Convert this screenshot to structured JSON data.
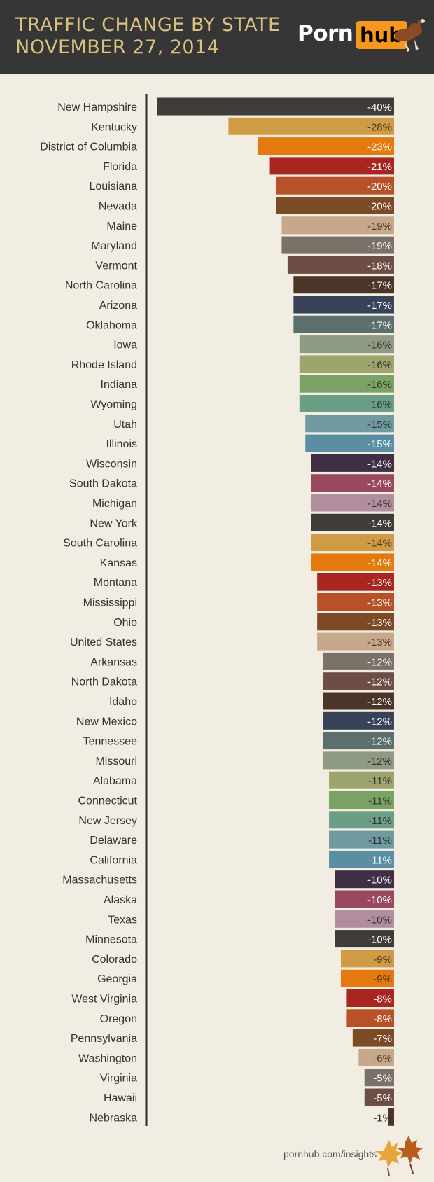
{
  "header": {
    "title_line1": "TRAFFIC CHANGE BY STATE",
    "title_line2": "NOVEMBER 27, 2014",
    "logo_left": "Porn",
    "logo_right": "hub"
  },
  "footer": {
    "source": "pornhub.com/insights"
  },
  "chart_data": {
    "type": "bar",
    "orientation": "horizontal",
    "title": "TRAFFIC CHANGE BY STATE NOVEMBER 27, 2014",
    "xlim": [
      -40,
      0
    ],
    "categories": [
      "New Hampshire",
      "Kentucky",
      "District of Columbia",
      "Florida",
      "Louisiana",
      "Nevada",
      "Maine",
      "Maryland",
      "Vermont",
      "North Carolina",
      "Arizona",
      "Oklahoma",
      "Iowa",
      "Rhode Island",
      "Indiana",
      "Wyoming",
      "Utah",
      "Illinois",
      "Wisconsin",
      "South Dakota",
      "Michigan",
      "New York",
      "South Carolina",
      "Kansas",
      "Montana",
      "Mississippi",
      "Ohio",
      "United States",
      "Arkansas",
      "North Dakota",
      "Idaho",
      "New Mexico",
      "Tennessee",
      "Missouri",
      "Alabama",
      "Connecticut",
      "New Jersey",
      "Delaware",
      "California",
      "Massachusetts",
      "Alaska",
      "Texas",
      "Minnesota",
      "Colorado",
      "Georgia",
      "West Virginia",
      "Oregon",
      "Pennsylvania",
      "Washington",
      "Virginia",
      "Hawaii",
      "Nebraska"
    ],
    "values": [
      -40,
      -28,
      -23,
      -21,
      -20,
      -20,
      -19,
      -19,
      -18,
      -17,
      -17,
      -17,
      -16,
      -16,
      -16,
      -16,
      -15,
      -15,
      -14,
      -14,
      -14,
      -14,
      -14,
      -14,
      -13,
      -13,
      -13,
      -13,
      -12,
      -12,
      -12,
      -12,
      -12,
      -12,
      -11,
      -11,
      -11,
      -11,
      -11,
      -10,
      -10,
      -10,
      -10,
      -9,
      -9,
      -8,
      -8,
      -7,
      -6,
      -5,
      -5,
      -1
    ],
    "labels": [
      "-40%",
      "-28%",
      "-23%",
      "-21%",
      "-20%",
      "-20%",
      "-19%",
      "-19%",
      "-18%",
      "-17%",
      "-17%",
      "-17%",
      "-16%",
      "-16%",
      "-16%",
      "-16%",
      "-15%",
      "-15%",
      "-14%",
      "-14%",
      "-14%",
      "-14%",
      "-14%",
      "-14%",
      "-13%",
      "-13%",
      "-13%",
      "-13%",
      "-12%",
      "-12%",
      "-12%",
      "-12%",
      "-12%",
      "-12%",
      "-11%",
      "-11%",
      "-11%",
      "-11%",
      "-11%",
      "-10%",
      "-10%",
      "-10%",
      "-10%",
      "-9%",
      "-9%",
      "-8%",
      "-8%",
      "-7%",
      "-6%",
      "-5%",
      "-5%",
      "-1%"
    ],
    "colors": [
      "#3f3b36",
      "#cf9b45",
      "#e47a0d",
      "#a8261f",
      "#b85127",
      "#7d4a26",
      "#c8a88a",
      "#7a7169",
      "#6c4e44",
      "#4a3527",
      "#384258",
      "#5b6f6c",
      "#8f9a82",
      "#9ea56c",
      "#7aa264",
      "#6a9f85",
      "#6f9aa0",
      "#5a8fa3",
      "#3e2f44",
      "#99485e",
      "#b18d9e",
      "#3f3b36",
      "#cf9b45",
      "#e47a0d",
      "#a8261f",
      "#b85127",
      "#7d4a26",
      "#c8a88a",
      "#7a7169",
      "#6c4e44",
      "#4a3527",
      "#384258",
      "#5b6f6c",
      "#8f9a82",
      "#9ea56c",
      "#7aa264",
      "#6a9f85",
      "#6f9aa0",
      "#5a8fa3",
      "#3e2f44",
      "#99485e",
      "#b18d9e",
      "#3f3b36",
      "#cf9b45",
      "#e47a0d",
      "#a8261f",
      "#b85127",
      "#7d4a26",
      "#c8a88a",
      "#7a7169",
      "#6c4e44",
      "#4a3527"
    ],
    "label_colors": [
      "#ffffff",
      "#4a3b1a",
      "#ffffff",
      "#ffffff",
      "#ffffff",
      "#ffffff",
      "#4a3b2a",
      "#ffffff",
      "#ffffff",
      "#ffffff",
      "#ffffff",
      "#ffffff",
      "#333333",
      "#333333",
      "#333333",
      "#333333",
      "#333333",
      "#ffffff",
      "#ffffff",
      "#ffffff",
      "#333333",
      "#ffffff",
      "#4a3b1a",
      "#ffffff",
      "#ffffff",
      "#ffffff",
      "#ffffff",
      "#4a3b2a",
      "#ffffff",
      "#ffffff",
      "#ffffff",
      "#ffffff",
      "#ffffff",
      "#333333",
      "#333333",
      "#333333",
      "#333333",
      "#333333",
      "#ffffff",
      "#ffffff",
      "#ffffff",
      "#333333",
      "#ffffff",
      "#4a3b1a",
      "#4a3b1a",
      "#ffffff",
      "#ffffff",
      "#ffffff",
      "#4a3b2a",
      "#ffffff",
      "#ffffff",
      "#333333"
    ]
  }
}
